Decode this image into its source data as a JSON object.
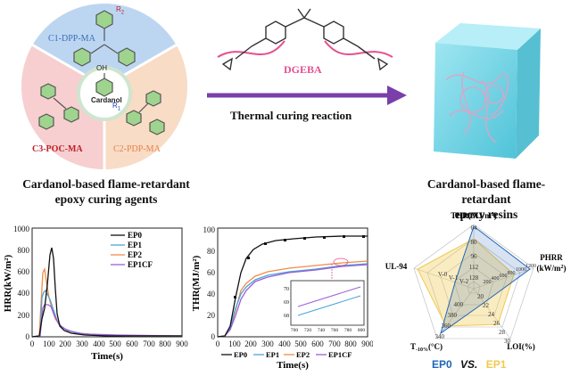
{
  "top": {
    "wheel": {
      "segments": [
        {
          "label": "C1-DPP-MA",
          "color": "#bcd6f2",
          "text_color": "#3b6fb5"
        },
        {
          "label": "C2-PDP-MA",
          "color": "#f8dcc5",
          "text_color": "#e8804b"
        },
        {
          "label": "C3-POC-MA",
          "color": "#f7cfd0",
          "text_color": "#c0202a"
        }
      ],
      "center_label": "Cardanol",
      "oh_label": "OH",
      "r1_label": "R",
      "r1_sub": "1",
      "r2_label": "R",
      "r2_sub": "2"
    },
    "dgeba_label": "DGEBA",
    "reaction_label": "Thermal curing reaction",
    "agents_caption_line1": "Cardanol-based flame-retardant",
    "agents_caption_line2": "epoxy curing agents",
    "resins_caption_line1": "Cardanol-based flame-retardant",
    "resins_caption_line2": "epoxy resins"
  },
  "hrr_chart": {
    "ylabel": "HRR(kW/m²)",
    "xlabel": "Time(s)",
    "y_ticks": [
      "0",
      "200",
      "400",
      "600",
      "800",
      "1000"
    ],
    "x_ticks": [
      "0",
      "100",
      "200",
      "300",
      "400",
      "500",
      "600",
      "700",
      "800",
      "900"
    ],
    "legend": [
      "EP0",
      "EP1",
      "EP2",
      "EP1CF"
    ]
  },
  "thr_chart": {
    "ylabel": "THR(MJ/m²)",
    "xlabel": "Time(s)",
    "y_ticks": [
      "0",
      "20",
      "40",
      "60",
      "80",
      "100"
    ],
    "x_ticks": [
      "0",
      "100",
      "200",
      "300",
      "400",
      "500",
      "600",
      "700",
      "800",
      "900"
    ],
    "legend": [
      "EP0",
      "EP1",
      "EP2",
      "EP1CF"
    ],
    "inset_y_ticks": [
      "68",
      "69",
      "70"
    ],
    "inset_x_ticks": [
      "700",
      "720",
      "740",
      "760",
      "780",
      "800"
    ]
  },
  "radar": {
    "axes": [
      {
        "label": "THR(MJ/m",
        "sup": "2",
        "tail": ")",
        "ticks": [
          "128",
          "112",
          "96",
          "80",
          "64"
        ]
      },
      {
        "label": "PHRR",
        "sub_label": "(kW/m",
        "sup": "2",
        "tail": ")",
        "ticks": [
          "200",
          "400",
          "600",
          "800",
          "1000",
          "1200"
        ]
      },
      {
        "label": "LOI(%)",
        "ticks": [
          "20",
          "22",
          "24",
          "26",
          "28",
          "30"
        ]
      },
      {
        "label": "T",
        "sub": "-10%",
        "tail": "(°C)",
        "ticks": [
          "400",
          "380",
          "360",
          "340"
        ]
      },
      {
        "label": "UL-94",
        "ticks": [
          "V-0",
          "V-1",
          "V-2"
        ]
      }
    ],
    "ep0_label": "EP0",
    "vs_label": "VS.",
    "ep1_label": "EP1",
    "ep0_color": "#1f66b8",
    "ep1_color": "#f2c94c"
  },
  "colors": {
    "ep0": "#111111",
    "ep1": "#4aa3d8",
    "ep2": "#f28c46",
    "ep1cf": "#9a5fd6",
    "arrow": "#7a3fa8",
    "dgeba": "#e5508f"
  }
}
